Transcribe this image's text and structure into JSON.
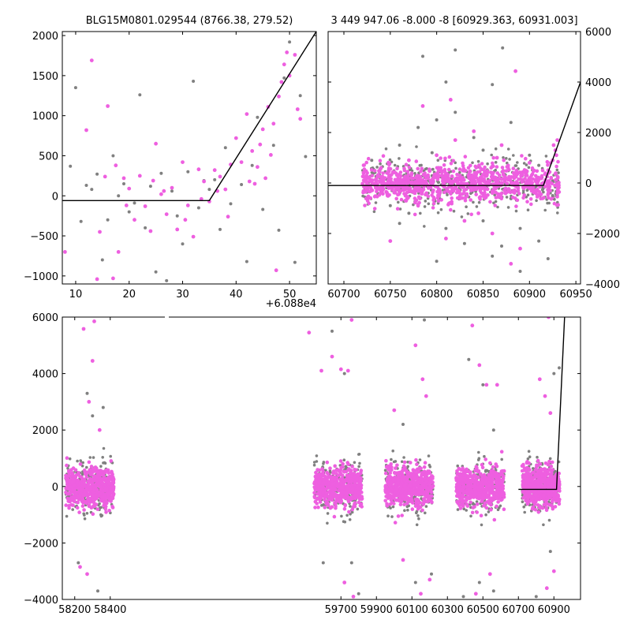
{
  "colors": {
    "magenta": "#ee5fe0",
    "gray": "#808080",
    "model_line": "#000000"
  },
  "chart_data": [
    {
      "id": "top-left",
      "type": "scatter",
      "title": "BLG15M0801.029544 (8766.38, 279.52)",
      "offset_label": "+6.088e4",
      "xlim": [
        7.5,
        55
      ],
      "ylim": [
        -1100,
        2050
      ],
      "xticks": [
        10,
        20,
        30,
        40,
        50
      ],
      "xtick_labels": [
        "10",
        "20",
        "30",
        "40",
        "50"
      ],
      "yticks": [
        -1000,
        -500,
        0,
        500,
        1000,
        1500,
        2000
      ],
      "ytick_labels": [
        "−1000",
        "−500",
        "0",
        "500",
        "1000",
        "1500",
        "2000"
      ],
      "model_line": {
        "x": [
          7.5,
          35,
          55
        ],
        "y": [
          -60,
          -60,
          2050
        ]
      },
      "series_gray": [
        [
          10,
          1350
        ],
        [
          9,
          370
        ],
        [
          12,
          130
        ],
        [
          14,
          270
        ],
        [
          15,
          -800
        ],
        [
          16,
          -300
        ],
        [
          18,
          0
        ],
        [
          19,
          150
        ],
        [
          20,
          -200
        ],
        [
          22,
          1260
        ],
        [
          23,
          -400
        ],
        [
          24,
          120
        ],
        [
          25,
          -950
        ],
        [
          26,
          280
        ],
        [
          27,
          -1060
        ],
        [
          28,
          60
        ],
        [
          30,
          -600
        ],
        [
          31,
          300
        ],
        [
          32,
          1430
        ],
        [
          33,
          -150
        ],
        [
          34,
          190
        ],
        [
          36,
          200
        ],
        [
          37,
          -420
        ],
        [
          38,
          600
        ],
        [
          39,
          -100
        ],
        [
          40,
          720
        ],
        [
          41,
          140
        ],
        [
          42,
          -820
        ],
        [
          43,
          380
        ],
        [
          44,
          980
        ],
        [
          45,
          -170
        ],
        [
          46,
          1110
        ],
        [
          47,
          630
        ],
        [
          48,
          -430
        ],
        [
          49,
          1470
        ],
        [
          50,
          1920
        ],
        [
          51,
          -830
        ],
        [
          52,
          1250
        ],
        [
          53,
          490
        ],
        [
          11,
          -320
        ],
        [
          13,
          80
        ],
        [
          17,
          500
        ],
        [
          21,
          -90
        ],
        [
          29,
          -250
        ],
        [
          35,
          80
        ]
      ],
      "series_magenta": [
        [
          8,
          -700
        ],
        [
          12,
          820
        ],
        [
          13,
          1690
        ],
        [
          14,
          -1040
        ],
        [
          16,
          1120
        ],
        [
          17,
          -1030
        ],
        [
          18,
          -700
        ],
        [
          19,
          220
        ],
        [
          20,
          90
        ],
        [
          21,
          -300
        ],
        [
          22,
          250
        ],
        [
          23,
          -130
        ],
        [
          24,
          -440
        ],
        [
          25,
          650
        ],
        [
          26,
          20
        ],
        [
          27,
          -230
        ],
        [
          28,
          100
        ],
        [
          29,
          -420
        ],
        [
          30,
          420
        ],
        [
          31,
          -120
        ],
        [
          32,
          -510
        ],
        [
          33,
          330
        ],
        [
          34,
          180
        ],
        [
          35,
          -70
        ],
        [
          36,
          320
        ],
        [
          37,
          240
        ],
        [
          38,
          80
        ],
        [
          39,
          390
        ],
        [
          40,
          720
        ],
        [
          41,
          420
        ],
        [
          42,
          1020
        ],
        [
          43,
          560
        ],
        [
          44,
          360
        ],
        [
          45,
          830
        ],
        [
          46,
          1110
        ],
        [
          47,
          900
        ],
        [
          48,
          1240
        ],
        [
          48.5,
          1420
        ],
        [
          49,
          1640
        ],
        [
          49.5,
          1790
        ],
        [
          50,
          1500
        ],
        [
          51,
          1760
        ],
        [
          51.5,
          1080
        ],
        [
          52,
          960
        ],
        [
          47.5,
          -930
        ],
        [
          14.5,
          -450
        ],
        [
          15.5,
          240
        ],
        [
          17.5,
          380
        ],
        [
          19.5,
          -120
        ],
        [
          24.5,
          190
        ],
        [
          26.5,
          60
        ],
        [
          30.5,
          -300
        ],
        [
          33.5,
          -40
        ],
        [
          36.5,
          60
        ],
        [
          38.5,
          -260
        ],
        [
          42.5,
          180
        ],
        [
          44.5,
          640
        ],
        [
          46.5,
          510
        ],
        [
          45.5,
          220
        ],
        [
          43.5,
          150
        ]
      ]
    },
    {
      "id": "top-right",
      "type": "scatter",
      "title": "3 449 947.06 -8.000 -8 [60929.363, 60931.003]",
      "xlim": [
        60683,
        60955
      ],
      "ylim": [
        -4000,
        6000
      ],
      "xticks": [
        60700,
        60750,
        60800,
        60850,
        60900,
        60950
      ],
      "xtick_labels": [
        "60700",
        "60750",
        "60800",
        "60850",
        "60900",
        "60950"
      ],
      "yticks": [
        -4000,
        -2000,
        0,
        2000,
        4000,
        6000
      ],
      "ytick_labels": [
        "−4000",
        "−2000",
        "0",
        "2000",
        "4000",
        "6000"
      ],
      "y_axis_side": "right",
      "model_line": {
        "x": [
          60683,
          60915,
          60955
        ],
        "y": [
          -100,
          -100,
          4000
        ]
      },
      "band": {
        "x_start": 60720,
        "x_end": 60932,
        "y_center": 0,
        "spread": 380
      },
      "series_gray": [
        [
          60785,
          5020
        ],
        [
          60820,
          5270
        ],
        [
          60871,
          5350
        ],
        [
          60810,
          4000
        ],
        [
          60860,
          3900
        ],
        [
          60800,
          2500
        ],
        [
          60820,
          2800
        ],
        [
          60760,
          1500
        ],
        [
          60840,
          1800
        ],
        [
          60880,
          2400
        ],
        [
          60900,
          1100
        ],
        [
          60850,
          -1500
        ],
        [
          60810,
          -1800
        ],
        [
          60770,
          -1200
        ],
        [
          60830,
          -2400
        ],
        [
          60870,
          -2500
        ],
        [
          60890,
          -1800
        ],
        [
          60910,
          -2300
        ],
        [
          60920,
          -3000
        ],
        [
          60800,
          -3100
        ],
        [
          60860,
          -2900
        ],
        [
          60760,
          -1600
        ],
        [
          60890,
          -3500
        ],
        [
          60780,
          2200
        ],
        [
          60850,
          1300
        ],
        [
          60730,
          900
        ],
        [
          60910,
          700
        ],
        [
          60750,
          -900
        ],
        [
          60925,
          -500
        ],
        [
          60795,
          1200
        ]
      ],
      "series_magenta": [
        [
          60885,
          4430
        ],
        [
          60785,
          3050
        ],
        [
          60840,
          2050
        ],
        [
          60870,
          1500
        ],
        [
          60820,
          1700
        ],
        [
          60800,
          1100
        ],
        [
          60750,
          -2300
        ],
        [
          60810,
          -2200
        ],
        [
          60860,
          -2000
        ],
        [
          60890,
          -2600
        ],
        [
          60880,
          -3200
        ],
        [
          60830,
          -1500
        ],
        [
          60770,
          900
        ],
        [
          60900,
          800
        ],
        [
          60930,
          1700
        ],
        [
          60928,
          1300
        ],
        [
          60925,
          900
        ],
        [
          60926,
          1500
        ],
        [
          60929,
          1100
        ],
        [
          60780,
          -900
        ],
        [
          60845,
          -1200
        ],
        [
          60865,
          1000
        ],
        [
          60740,
          600
        ],
        [
          60815,
          3300
        ]
      ]
    },
    {
      "id": "bottom",
      "type": "scatter",
      "xlim": [
        58130,
        61050
      ],
      "ylim": [
        -4000,
        6000
      ],
      "xticks": [
        58200,
        58400,
        59700,
        59900,
        60100,
        60300,
        60500,
        60700,
        60900
      ],
      "xtick_labels": [
        "58200",
        "58400",
        "59700",
        "59900",
        "60100",
        "60300",
        "60500",
        "60700",
        "60900"
      ],
      "yticks": [
        -4000,
        -2000,
        0,
        2000,
        4000,
        6000
      ],
      "ytick_labels": [
        "−4000",
        "−2000",
        "0",
        "2000",
        "4000",
        "6000"
      ],
      "model_line": {
        "x": [
          60700,
          60915,
          60960
        ],
        "y": [
          -100,
          -100,
          6000
        ]
      },
      "seasons": [
        {
          "x_start": 58150,
          "x_end": 58420
        },
        {
          "x_start": 59550,
          "x_end": 59820
        },
        {
          "x_start": 59950,
          "x_end": 60220
        },
        {
          "x_start": 60350,
          "x_end": 60620
        },
        {
          "x_start": 60720,
          "x_end": 60932
        }
      ],
      "series_gray": [
        [
          58270,
          3300
        ],
        [
          58300,
          2500
        ],
        [
          58220,
          -2700
        ],
        [
          58330,
          -3700
        ],
        [
          59650,
          5500
        ],
        [
          59720,
          4000
        ],
        [
          59760,
          -2700
        ],
        [
          59800,
          -3800
        ],
        [
          60170,
          5900
        ],
        [
          60210,
          -3100
        ],
        [
          60120,
          -3400
        ],
        [
          60420,
          4500
        ],
        [
          60500,
          3600
        ],
        [
          60480,
          -3400
        ],
        [
          60560,
          -3700
        ],
        [
          60390,
          -3900
        ],
        [
          60900,
          4000
        ],
        [
          60880,
          -2300
        ],
        [
          60930,
          4200
        ],
        [
          60800,
          -3900
        ],
        [
          59600,
          -2700
        ],
        [
          60050,
          2200
        ],
        [
          60560,
          2000
        ],
        [
          58360,
          2800
        ]
      ],
      "series_magenta": [
        [
          58250,
          5580
        ],
        [
          58310,
          5850
        ],
        [
          58300,
          4450
        ],
        [
          58280,
          3000
        ],
        [
          58230,
          -2850
        ],
        [
          58270,
          -3100
        ],
        [
          59520,
          5450
        ],
        [
          59590,
          4100
        ],
        [
          59650,
          4600
        ],
        [
          59700,
          4150
        ],
        [
          59740,
          4100
        ],
        [
          59760,
          5900
        ],
        [
          59720,
          -3400
        ],
        [
          59770,
          -3900
        ],
        [
          60120,
          5000
        ],
        [
          60160,
          3800
        ],
        [
          60180,
          3200
        ],
        [
          60050,
          -2600
        ],
        [
          60150,
          -3800
        ],
        [
          60200,
          -3300
        ],
        [
          60440,
          5700
        ],
        [
          60480,
          4300
        ],
        [
          60520,
          3600
        ],
        [
          60460,
          -3800
        ],
        [
          60540,
          -3100
        ],
        [
          60820,
          3800
        ],
        [
          60850,
          3200
        ],
        [
          60880,
          2600
        ],
        [
          60860,
          -3600
        ],
        [
          60900,
          -3000
        ],
        [
          60870,
          6000
        ],
        [
          58340,
          2000
        ],
        [
          60580,
          3600
        ],
        [
          60000,
          2700
        ]
      ]
    }
  ]
}
